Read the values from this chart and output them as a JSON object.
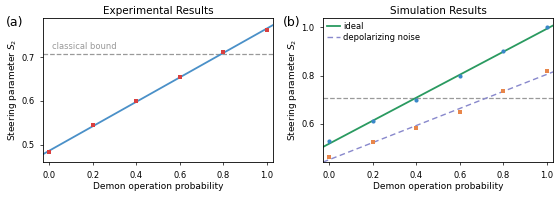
{
  "panel_a": {
    "title": "Experimental Results",
    "xlabel": "Demon operation probability",
    "ylabel": "Steering parameter $S_2$",
    "x_data": [
      0.0,
      0.2,
      0.4,
      0.6,
      0.8,
      1.0
    ],
    "y_data": [
      0.483,
      0.545,
      0.6,
      0.655,
      0.712,
      0.762
    ],
    "line_color": "#4a90c8",
    "marker_color": "#d94040",
    "classical_bound": 0.707,
    "classical_bound_label": "classical bound",
    "xlim": [
      -0.03,
      1.03
    ],
    "ylim": [
      0.46,
      0.79
    ],
    "yticks": [
      0.5,
      0.6,
      0.7
    ],
    "xticks": [
      0.0,
      0.2,
      0.4,
      0.6,
      0.8,
      1.0
    ]
  },
  "panel_b": {
    "title": "Simulation Results",
    "xlabel": "Demon operation probability",
    "ylabel": "Steering parameter $S_2$",
    "x_data": [
      0.0,
      0.2,
      0.4,
      0.6,
      0.8,
      1.0
    ],
    "y_ideal": [
      0.527,
      0.61,
      0.7,
      0.8,
      0.9,
      1.0
    ],
    "y_noise": [
      0.463,
      0.523,
      0.583,
      0.648,
      0.735,
      0.818
    ],
    "ideal_color": "#2a9a60",
    "noise_color": "#8888cc",
    "marker_color_ideal": "#3a87c8",
    "marker_color_noise": "#e8864a",
    "classical_bound": 0.707,
    "xlim": [
      -0.03,
      1.03
    ],
    "ylim": [
      0.44,
      1.04
    ],
    "yticks": [
      0.6,
      0.8,
      1.0
    ],
    "xticks": [
      0.0,
      0.2,
      0.4,
      0.6,
      0.8,
      1.0
    ],
    "legend_ideal": "ideal",
    "legend_noise": "depolarizing noise"
  },
  "label_fontsize": 6.5,
  "title_fontsize": 7.5,
  "tick_fontsize": 6,
  "legend_fontsize": 6,
  "panel_label_fontsize": 9,
  "bg_color": "#ffffff"
}
